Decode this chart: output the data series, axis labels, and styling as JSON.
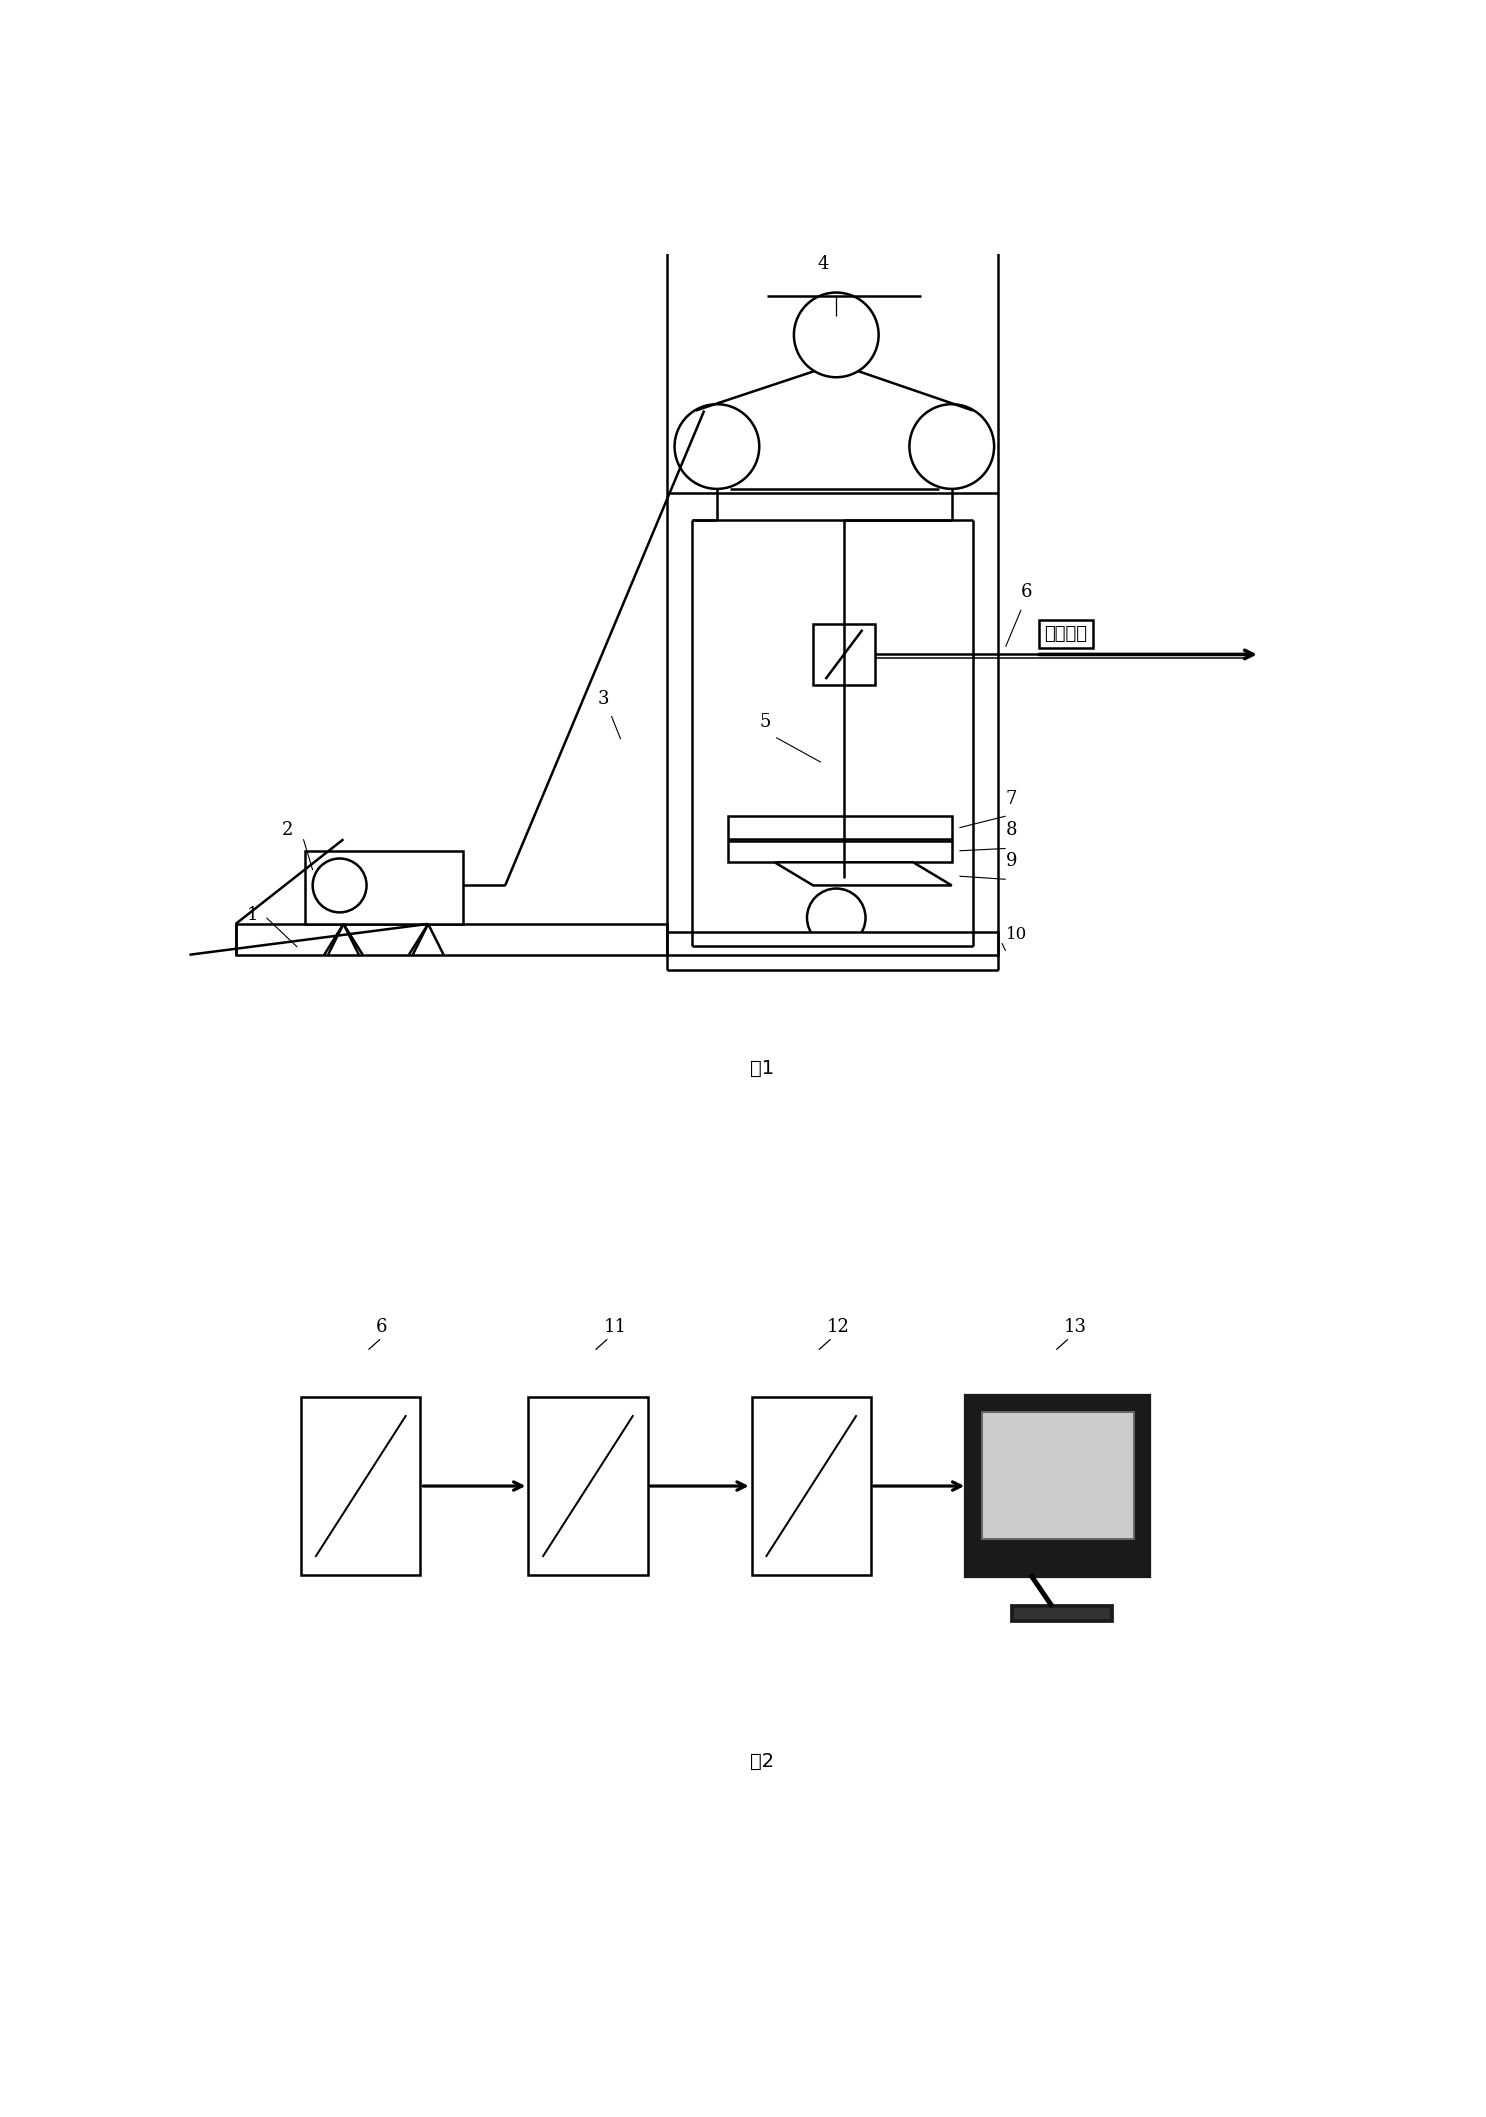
{
  "fig_width": 14.86,
  "fig_height": 21.17,
  "bg_color": "#ffffff",
  "line_color": "#000000",
  "line_width": 1.8,
  "fig1_caption": "图1",
  "fig2_caption": "图2",
  "data_label": "数据采集"
}
